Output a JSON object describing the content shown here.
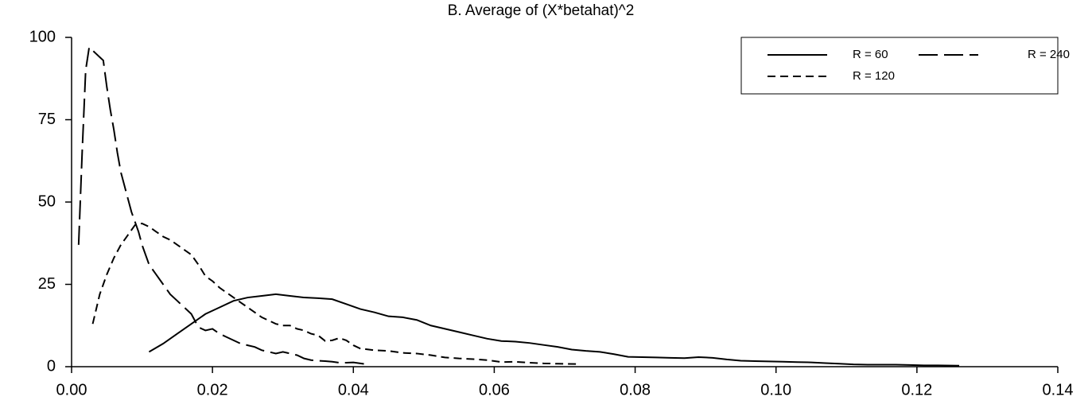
{
  "chart_data": {
    "type": "line",
    "title": "B.  Average of (X*betahat)^2",
    "xlim": [
      0,
      0.14
    ],
    "xticks": [
      {
        "value": 0,
        "label": "0.00"
      },
      {
        "value": 0.02,
        "label": "0.02"
      },
      {
        "value": 0.04,
        "label": "0.04"
      },
      {
        "value": 0.06,
        "label": "0.06"
      },
      {
        "value": 0.08,
        "label": "0.08"
      },
      {
        "value": 0.1,
        "label": "0.10"
      },
      {
        "value": 0.12,
        "label": "0.12"
      },
      {
        "value": 0.14,
        "label": "0.14"
      }
    ],
    "ylim": [
      0,
      100
    ],
    "yticks": [
      0,
      25,
      50,
      75,
      100
    ],
    "grid": false,
    "legend": "upper right",
    "series": [
      {
        "name": "R = 60",
        "color": "#000000",
        "dash": "solid",
        "x": [
          0.011,
          0.013,
          0.015,
          0.017,
          0.019,
          0.021,
          0.023,
          0.025,
          0.027,
          0.029,
          0.031,
          0.033,
          0.035,
          0.037,
          0.039,
          0.041,
          0.043,
          0.045,
          0.047,
          0.049,
          0.051,
          0.053,
          0.055,
          0.057,
          0.059,
          0.061,
          0.063,
          0.065,
          0.067,
          0.069,
          0.071,
          0.073,
          0.075,
          0.077,
          0.079,
          0.081,
          0.083,
          0.085,
          0.087,
          0.089,
          0.091,
          0.093,
          0.095,
          0.097,
          0.099,
          0.101,
          0.103,
          0.105,
          0.107,
          0.109,
          0.111,
          0.113,
          0.115,
          0.117,
          0.119,
          0.121,
          0.123,
          0.126
        ],
        "values": [
          4.5,
          7,
          10,
          13,
          16,
          18,
          20,
          21,
          21.5,
          22,
          21.5,
          21,
          20.8,
          20.5,
          19,
          17.5,
          16.5,
          15.3,
          15,
          14.2,
          12.5,
          11.5,
          10.5,
          9.5,
          8.5,
          7.8,
          7.6,
          7.2,
          6.6,
          6,
          5.2,
          4.8,
          4.5,
          3.8,
          3,
          2.9,
          2.8,
          2.7,
          2.6,
          2.9,
          2.7,
          2.2,
          1.8,
          1.7,
          1.6,
          1.5,
          1.4,
          1.3,
          1.1,
          0.9,
          0.7,
          0.6,
          0.6,
          0.6,
          0.5,
          0.4,
          0.4,
          0.3
        ]
      },
      {
        "name": "R = 120",
        "color": "#000000",
        "dash": "short",
        "x": [
          0.003,
          0.004,
          0.005,
          0.006,
          0.007,
          0.008,
          0.009,
          0.01,
          0.011,
          0.012,
          0.013,
          0.014,
          0.015,
          0.016,
          0.017,
          0.018,
          0.019,
          0.02,
          0.021,
          0.022,
          0.023,
          0.024,
          0.025,
          0.026,
          0.027,
          0.028,
          0.029,
          0.03,
          0.031,
          0.032,
          0.033,
          0.034,
          0.035,
          0.036,
          0.037,
          0.038,
          0.039,
          0.04,
          0.041,
          0.043,
          0.045,
          0.047,
          0.049,
          0.051,
          0.053,
          0.055,
          0.057,
          0.059,
          0.061,
          0.063,
          0.065,
          0.067,
          0.069,
          0.072
        ],
        "values": [
          13,
          22,
          28,
          33,
          37,
          40,
          43,
          43.5,
          42.5,
          41,
          39.5,
          38.5,
          37,
          35.5,
          34,
          31,
          27.5,
          26,
          24,
          22.5,
          21,
          19.5,
          18,
          16.5,
          15,
          14,
          13,
          12.5,
          12.5,
          11.5,
          11,
          10,
          9.5,
          7.8,
          8,
          8.7,
          8,
          6.5,
          5.5,
          5,
          4.8,
          4.2,
          4,
          3.5,
          2.8,
          2.5,
          2.3,
          2,
          1.4,
          1.5,
          1.2,
          1,
          0.9,
          0.8
        ]
      },
      {
        "name": "R = 240",
        "color": "#000000",
        "dash": "long",
        "x": [
          0.001,
          0.0015,
          0.002,
          0.0025,
          0.003,
          0.0035,
          0.004,
          0.0045,
          0.005,
          0.0055,
          0.006,
          0.0065,
          0.007,
          0.0075,
          0.008,
          0.0085,
          0.009,
          0.0095,
          0.01,
          0.011,
          0.012,
          0.013,
          0.014,
          0.015,
          0.016,
          0.017,
          0.018,
          0.019,
          0.02,
          0.021,
          0.022,
          0.023,
          0.024,
          0.025,
          0.026,
          0.027,
          0.028,
          0.029,
          0.03,
          0.031,
          0.032,
          0.033,
          0.034,
          0.035,
          0.036,
          0.037,
          0.038,
          0.039,
          0.04,
          0.041,
          0.042
        ],
        "values": [
          37,
          65,
          90,
          97,
          96,
          95,
          94,
          93,
          85,
          78,
          72,
          65,
          59,
          55,
          51,
          47,
          44,
          41,
          37,
          31,
          28,
          25,
          22,
          20,
          18,
          16,
          12,
          11,
          11.5,
          10,
          9,
          8,
          7,
          6.5,
          6,
          5,
          4.5,
          4,
          4.5,
          4,
          3.5,
          2.5,
          2,
          1.8,
          1.7,
          1.5,
          1.2,
          1.2,
          1.3,
          1,
          0.7
        ]
      }
    ]
  }
}
